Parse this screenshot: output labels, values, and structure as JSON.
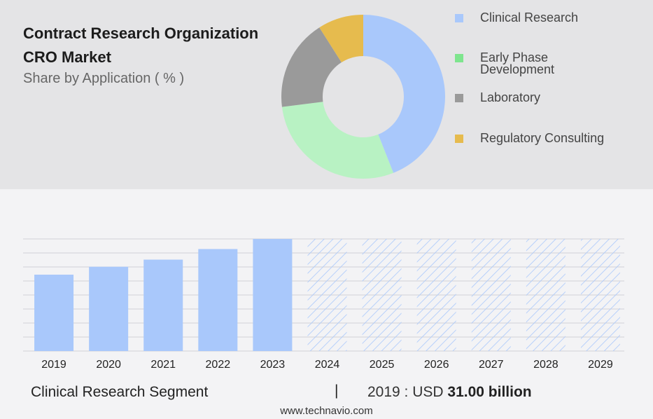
{
  "header": {
    "title_line1": "Contract Research Organization",
    "title_line2": "CRO Market",
    "subtitle": "Share by Application ( % )"
  },
  "legend": [
    {
      "label": "Clinical Research",
      "color": "#a9c8fb"
    },
    {
      "label": "Early Phase Development",
      "color": "#7ee58e"
    },
    {
      "label": "Laboratory",
      "color": "#9a9a9a"
    },
    {
      "label": "Regulatory Consulting",
      "color": "#e6bb4e"
    }
  ],
  "chart_data": [
    {
      "type": "pie",
      "categories": [
        "Clinical Research",
        "Early Phase Development",
        "Laboratory",
        "Regulatory Consulting"
      ],
      "values": [
        44,
        29,
        18,
        9
      ],
      "colors": [
        "#a9c8fb",
        "#b8f2c3",
        "#9a9a9a",
        "#e6bb4e"
      ]
    },
    {
      "type": "bar",
      "categories": [
        "2019",
        "2020",
        "2021",
        "2022",
        "2023",
        "2024",
        "2025",
        "2026",
        "2027",
        "2028",
        "2029"
      ],
      "values": [
        31.0,
        34.2,
        37.1,
        41.4,
        45.5,
        null,
        null,
        null,
        null,
        null,
        null
      ],
      "forecast": [
        false,
        false,
        false,
        false,
        false,
        true,
        true,
        true,
        true,
        true,
        true
      ],
      "ylim": [
        0,
        45.5
      ],
      "grid": true,
      "color": "#a9c8fb"
    }
  ],
  "footer": {
    "segment": "Clinical Research Segment",
    "separator": "|",
    "value_prefix": "2019 : USD",
    "value_bold": "31.00 billion",
    "url": "www.technavio.com"
  }
}
